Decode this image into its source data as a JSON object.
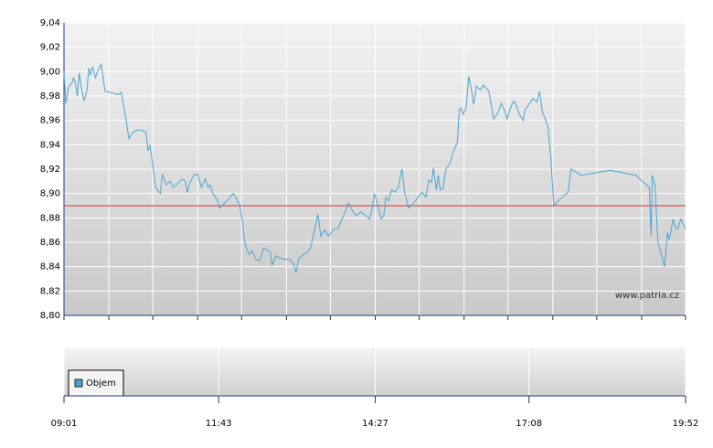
{
  "chart_data": {
    "type": "line",
    "watermark": "www.patria.cz",
    "xlim": [
      541,
      1192
    ],
    "xticks": [
      {
        "value": 541,
        "label": "09:01"
      },
      {
        "value": 703,
        "label": "11:43"
      },
      {
        "value": 867,
        "label": "14:27"
      },
      {
        "value": 1028,
        "label": "17:08"
      },
      {
        "value": 1192,
        "label": "19:52"
      }
    ],
    "xgrid": [
      541,
      588,
      634,
      681,
      727,
      774,
      820,
      867,
      913,
      960,
      1006,
      1053,
      1099,
      1146,
      1192
    ],
    "ylim": [
      8.8,
      9.04
    ],
    "yticks": [
      {
        "value": 8.8,
        "label": "8,80"
      },
      {
        "value": 8.82,
        "label": "8,82"
      },
      {
        "value": 8.84,
        "label": "8,84"
      },
      {
        "value": 8.86,
        "label": "8,86"
      },
      {
        "value": 8.88,
        "label": "8,88"
      },
      {
        "value": 8.9,
        "label": "8,90"
      },
      {
        "value": 8.92,
        "label": "8,92"
      },
      {
        "value": 8.94,
        "label": "8,94"
      },
      {
        "value": 8.96,
        "label": "8,96"
      },
      {
        "value": 8.98,
        "label": "8,98"
      },
      {
        "value": 9.0,
        "label": "9,00"
      },
      {
        "value": 9.02,
        "label": "9,02"
      },
      {
        "value": 9.04,
        "label": "9,04"
      }
    ],
    "grid": true,
    "reference_line": {
      "value": 8.89,
      "color": "#e03030"
    },
    "series": [
      {
        "color": "#4aa3d4",
        "x": [
          541,
          543,
          546,
          549,
          551,
          553,
          555,
          557,
          559,
          562,
          565,
          567,
          569,
          571,
          574,
          576,
          580,
          584,
          594,
          598,
          601,
          603,
          606,
          609,
          613,
          618,
          622,
          627,
          629,
          631,
          634,
          637,
          642,
          644,
          648,
          652,
          656,
          661,
          665,
          668,
          670,
          673,
          677,
          681,
          685,
          689,
          692,
          694,
          697,
          702,
          704,
          709,
          713,
          718,
          721,
          725,
          728,
          730,
          732,
          735,
          738,
          742,
          746,
          750,
          753,
          757,
          759,
          763,
          767,
          773,
          778,
          782,
          784,
          787,
          792,
          796,
          799,
          803,
          807,
          810,
          814,
          818,
          821,
          824,
          828,
          832,
          836,
          839,
          843,
          847,
          852,
          857,
          861,
          864,
          866,
          870,
          873,
          876,
          878,
          881,
          884,
          888,
          891,
          895,
          898,
          902,
          907,
          912,
          916,
          920,
          923,
          926,
          928,
          931,
          933,
          935,
          938,
          941,
          945,
          949,
          953,
          955,
          957,
          959,
          962,
          965,
          968,
          970,
          973,
          977,
          980,
          986,
          991,
          996,
          999,
          1002,
          1005,
          1008,
          1012,
          1015,
          1018,
          1022,
          1024,
          1027,
          1032,
          1036,
          1039,
          1042,
          1045,
          1048,
          1051,
          1054,
          1060,
          1069,
          1072,
          1083,
          1113,
          1140,
          1154,
          1156,
          1157,
          1160,
          1163,
          1167,
          1170,
          1173,
          1175,
          1179,
          1182,
          1184,
          1187,
          1192
        ],
        "values": [
          8.999,
          8.974,
          8.988,
          8.99,
          8.995,
          8.991,
          8.98,
          8.999,
          8.988,
          8.976,
          8.984,
          9.003,
          8.997,
          9.004,
          8.995,
          9.0,
          9.006,
          8.984,
          8.982,
          8.981,
          8.983,
          8.973,
          8.961,
          8.945,
          8.95,
          8.952,
          8.952,
          8.95,
          8.935,
          8.94,
          8.924,
          8.905,
          8.9,
          8.916,
          8.907,
          8.91,
          8.905,
          8.909,
          8.912,
          8.91,
          8.901,
          8.909,
          8.915,
          8.916,
          8.905,
          8.912,
          8.905,
          8.907,
          8.9,
          8.894,
          8.888,
          8.892,
          8.895,
          8.9,
          8.897,
          8.89,
          8.877,
          8.862,
          8.855,
          8.85,
          8.853,
          8.846,
          8.845,
          8.855,
          8.854,
          8.852,
          8.841,
          8.849,
          8.847,
          8.846,
          8.846,
          8.841,
          8.835,
          8.847,
          8.85,
          8.852,
          8.855,
          8.868,
          8.883,
          8.865,
          8.87,
          8.865,
          8.868,
          8.871,
          8.871,
          8.879,
          8.886,
          8.892,
          8.886,
          8.882,
          8.885,
          8.882,
          8.879,
          8.888,
          8.9,
          8.89,
          8.879,
          8.882,
          8.897,
          8.894,
          8.903,
          8.901,
          8.905,
          8.92,
          8.9,
          8.888,
          8.892,
          8.897,
          8.901,
          8.897,
          8.911,
          8.909,
          8.921,
          8.903,
          8.915,
          8.903,
          8.904,
          8.92,
          8.924,
          8.935,
          8.942,
          8.969,
          8.97,
          8.965,
          8.97,
          8.996,
          8.984,
          8.973,
          8.988,
          8.985,
          8.989,
          8.984,
          8.961,
          8.967,
          8.974,
          8.969,
          8.961,
          8.969,
          8.976,
          8.972,
          8.965,
          8.96,
          8.969,
          8.972,
          8.978,
          8.975,
          8.984,
          8.967,
          8.961,
          8.954,
          8.928,
          8.89,
          8.895,
          8.901,
          8.92,
          8.915,
          8.919,
          8.915,
          8.905,
          8.865,
          8.915,
          8.907,
          8.86,
          8.849,
          8.84,
          8.868,
          8.862,
          8.879,
          8.871,
          8.871,
          8.879,
          8.871
        ]
      }
    ],
    "legend": [
      {
        "name": "Objem",
        "color": "#4aa3d4"
      }
    ]
  }
}
